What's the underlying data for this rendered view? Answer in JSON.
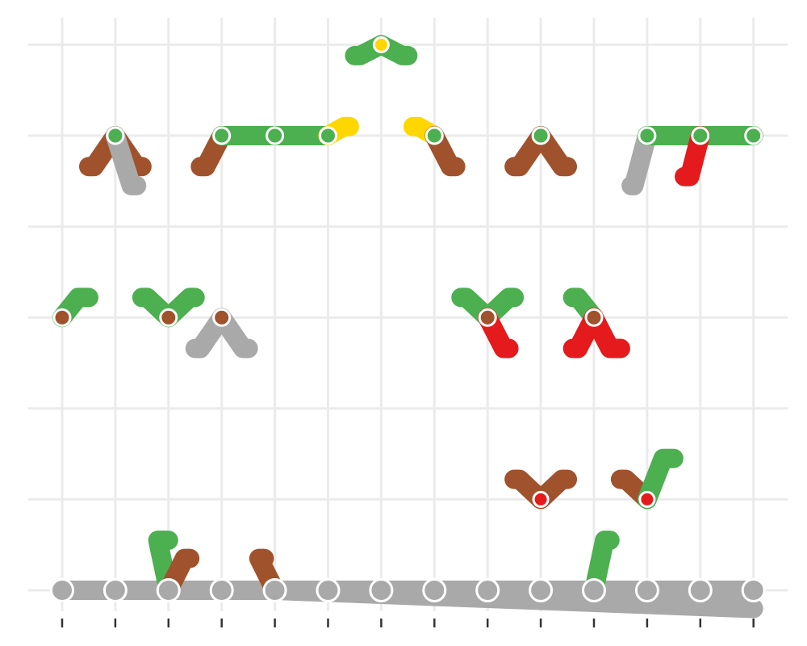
{
  "chart_data": {
    "type": "scatter",
    "title": "",
    "xlabel": "",
    "ylabel": "",
    "x_ticks": [
      1,
      2,
      3,
      4,
      5,
      6,
      7,
      8,
      9,
      10,
      11,
      12,
      13,
      14
    ],
    "y_levels": [
      1,
      2,
      3,
      4,
      5,
      6,
      7
    ],
    "grid": true,
    "legend": "none",
    "colors": {
      "green": "#4caf50",
      "brown": "#a0522d",
      "gray": "#a9a9a9",
      "red": "#e41a1c",
      "yellow": "#ffd700"
    },
    "nodes": [
      {
        "x": 1,
        "y": 1,
        "color": "gray"
      },
      {
        "x": 2,
        "y": 1,
        "color": "gray"
      },
      {
        "x": 3,
        "y": 1,
        "color": "gray"
      },
      {
        "x": 4,
        "y": 1,
        "color": "gray"
      },
      {
        "x": 5,
        "y": 1,
        "color": "gray"
      },
      {
        "x": 6,
        "y": 1,
        "color": "gray"
      },
      {
        "x": 7,
        "y": 1,
        "color": "gray"
      },
      {
        "x": 8,
        "y": 1,
        "color": "gray"
      },
      {
        "x": 9,
        "y": 1,
        "color": "gray"
      },
      {
        "x": 10,
        "y": 1,
        "color": "gray"
      },
      {
        "x": 11,
        "y": 1,
        "color": "gray"
      },
      {
        "x": 12,
        "y": 1,
        "color": "gray"
      },
      {
        "x": 13,
        "y": 1,
        "color": "gray"
      },
      {
        "x": 14,
        "y": 1,
        "color": "gray"
      },
      {
        "x": 10,
        "y": 2,
        "color": "red"
      },
      {
        "x": 12,
        "y": 2,
        "color": "red"
      },
      {
        "x": 1,
        "y": 4,
        "color": "brown"
      },
      {
        "x": 3,
        "y": 4,
        "color": "brown"
      },
      {
        "x": 4,
        "y": 4,
        "color": "brown"
      },
      {
        "x": 9,
        "y": 4,
        "color": "brown"
      },
      {
        "x": 11,
        "y": 4,
        "color": "brown"
      },
      {
        "x": 2,
        "y": 6,
        "color": "green"
      },
      {
        "x": 4,
        "y": 6,
        "color": "green"
      },
      {
        "x": 5,
        "y": 6,
        "color": "green"
      },
      {
        "x": 6,
        "y": 6,
        "color": "green"
      },
      {
        "x": 8,
        "y": 6,
        "color": "green"
      },
      {
        "x": 10,
        "y": 6,
        "color": "green"
      },
      {
        "x": 12,
        "y": 6,
        "color": "green"
      },
      {
        "x": 13,
        "y": 6,
        "color": "green"
      },
      {
        "x": 14,
        "y": 6,
        "color": "green"
      },
      {
        "x": 7,
        "y": 7,
        "color": "yellow"
      }
    ],
    "links": [
      {
        "color": "gray",
        "path": [
          [
            1,
            1
          ],
          [
            14,
            1
          ]
        ]
      },
      {
        "color": "gray",
        "path": [
          [
            5,
            1
          ],
          [
            14,
            0.8
          ]
        ]
      },
      {
        "color": "green",
        "path": [
          [
            3,
            1
          ],
          [
            2.8,
            1.55
          ],
          [
            3,
            1.55
          ]
        ]
      },
      {
        "color": "brown",
        "path": [
          [
            3,
            1
          ],
          [
            3.3,
            1.35
          ],
          [
            3.4,
            1.35
          ]
        ]
      },
      {
        "color": "brown",
        "path": [
          [
            5,
            1
          ],
          [
            4.7,
            1.35
          ],
          [
            4.8,
            1.35
          ]
        ]
      },
      {
        "color": "green",
        "path": [
          [
            11,
            1
          ],
          [
            11.2,
            1.55
          ],
          [
            11.3,
            1.55
          ]
        ]
      },
      {
        "color": "brown",
        "path": [
          [
            10,
            2
          ],
          [
            9.6,
            2.22
          ],
          [
            9.5,
            2.22
          ]
        ]
      },
      {
        "color": "brown",
        "path": [
          [
            10,
            2
          ],
          [
            10.4,
            2.22
          ],
          [
            10.5,
            2.22
          ]
        ]
      },
      {
        "color": "brown",
        "path": [
          [
            12,
            2
          ],
          [
            11.6,
            2.22
          ],
          [
            11.5,
            2.22
          ]
        ]
      },
      {
        "color": "green",
        "path": [
          [
            12,
            2
          ],
          [
            12.3,
            2.45
          ],
          [
            12.5,
            2.45
          ]
        ]
      },
      {
        "color": "green",
        "path": [
          [
            1,
            4
          ],
          [
            1.3,
            4.22
          ],
          [
            1.5,
            4.22
          ]
        ]
      },
      {
        "color": "green",
        "path": [
          [
            3,
            4
          ],
          [
            2.6,
            4.22
          ],
          [
            2.5,
            4.22
          ]
        ]
      },
      {
        "color": "green",
        "path": [
          [
            3,
            4
          ],
          [
            3.4,
            4.22
          ],
          [
            3.5,
            4.22
          ]
        ]
      },
      {
        "color": "gray",
        "path": [
          [
            4,
            4
          ],
          [
            3.6,
            3.66
          ],
          [
            3.5,
            3.66
          ]
        ]
      },
      {
        "color": "gray",
        "path": [
          [
            4,
            4
          ],
          [
            4.4,
            3.66
          ],
          [
            4.5,
            3.66
          ]
        ]
      },
      {
        "color": "green",
        "path": [
          [
            9,
            4
          ],
          [
            8.6,
            4.22
          ],
          [
            8.5,
            4.22
          ]
        ]
      },
      {
        "color": "green",
        "path": [
          [
            9,
            4
          ],
          [
            9.4,
            4.22
          ],
          [
            9.5,
            4.22
          ]
        ]
      },
      {
        "color": "red",
        "path": [
          [
            9,
            4
          ],
          [
            9.3,
            3.66
          ],
          [
            9.4,
            3.66
          ]
        ]
      },
      {
        "color": "green",
        "path": [
          [
            11,
            4
          ],
          [
            10.7,
            4.22
          ],
          [
            10.6,
            4.22
          ]
        ]
      },
      {
        "color": "red",
        "path": [
          [
            11,
            4
          ],
          [
            10.7,
            3.66
          ],
          [
            10.6,
            3.66
          ]
        ]
      },
      {
        "color": "red",
        "path": [
          [
            11,
            4
          ],
          [
            11.3,
            3.66
          ],
          [
            11.5,
            3.66
          ]
        ]
      },
      {
        "color": "brown",
        "path": [
          [
            2,
            6
          ],
          [
            1.6,
            5.66
          ],
          [
            1.5,
            5.66
          ]
        ]
      },
      {
        "color": "brown",
        "path": [
          [
            2,
            6
          ],
          [
            2.4,
            5.66
          ],
          [
            2.5,
            5.66
          ]
        ]
      },
      {
        "color": "gray",
        "path": [
          [
            2,
            6
          ],
          [
            2.3,
            5.45
          ],
          [
            2.4,
            5.45
          ]
        ]
      },
      {
        "color": "brown",
        "path": [
          [
            4,
            6
          ],
          [
            3.7,
            5.66
          ],
          [
            3.6,
            5.66
          ]
        ]
      },
      {
        "color": "green",
        "path": [
          [
            4,
            6
          ],
          [
            6,
            6
          ]
        ]
      },
      {
        "color": "yellow",
        "path": [
          [
            6,
            6
          ],
          [
            6.3,
            6.1
          ],
          [
            6.4,
            6.1
          ]
        ]
      },
      {
        "color": "yellow",
        "path": [
          [
            8,
            6
          ],
          [
            7.7,
            6.1
          ],
          [
            7.6,
            6.1
          ]
        ]
      },
      {
        "color": "brown",
        "path": [
          [
            8,
            6
          ],
          [
            8.3,
            5.66
          ],
          [
            8.4,
            5.66
          ]
        ]
      },
      {
        "color": "brown",
        "path": [
          [
            10,
            6
          ],
          [
            9.6,
            5.66
          ],
          [
            9.5,
            5.66
          ]
        ]
      },
      {
        "color": "brown",
        "path": [
          [
            10,
            6
          ],
          [
            10.4,
            5.66
          ],
          [
            10.5,
            5.66
          ]
        ]
      },
      {
        "color": "gray",
        "path": [
          [
            12,
            6
          ],
          [
            11.75,
            5.45
          ],
          [
            11.7,
            5.45
          ]
        ]
      },
      {
        "color": "green",
        "path": [
          [
            12,
            6
          ],
          [
            14,
            6
          ]
        ]
      },
      {
        "color": "red",
        "path": [
          [
            13,
            6
          ],
          [
            12.8,
            5.55
          ],
          [
            12.7,
            5.55
          ]
        ]
      },
      {
        "color": "green",
        "path": [
          [
            7,
            7
          ],
          [
            6.6,
            6.88
          ],
          [
            6.5,
            6.88
          ]
        ]
      },
      {
        "color": "green",
        "path": [
          [
            7,
            7
          ],
          [
            7.4,
            6.88
          ],
          [
            7.5,
            6.88
          ]
        ]
      }
    ]
  }
}
